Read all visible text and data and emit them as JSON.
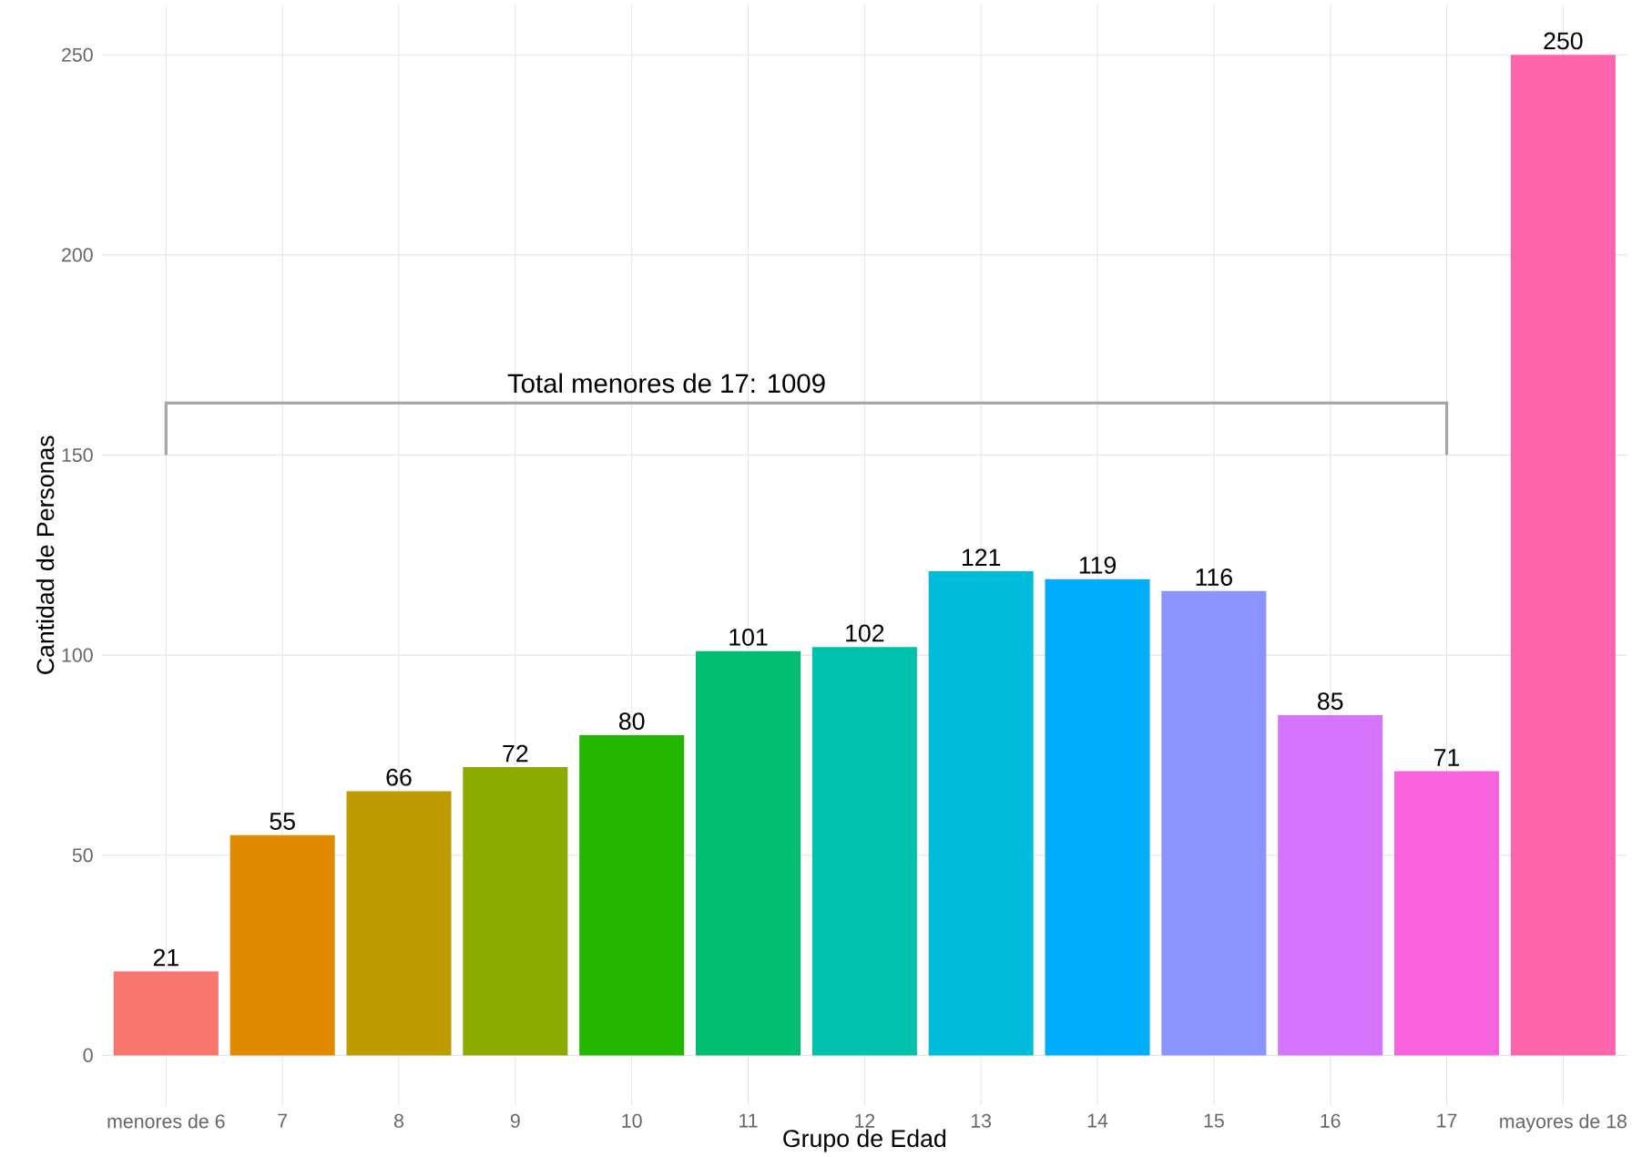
{
  "chart_data": {
    "type": "bar",
    "xlabel": "Grupo de Edad",
    "ylabel": "Cantidad de Personas",
    "categories": [
      "menores de 6",
      "7",
      "8",
      "9",
      "10",
      "11",
      "12",
      "13",
      "14",
      "15",
      "16",
      "17",
      "mayores de 18"
    ],
    "values": [
      21,
      55,
      66,
      72,
      80,
      101,
      102,
      121,
      119,
      116,
      85,
      71,
      250
    ],
    "colors": [
      "#F8766D",
      "#E18A00",
      "#BE9C00",
      "#8CAB00",
      "#24B700",
      "#00BE70",
      "#00C1AB",
      "#00BBDA",
      "#00ACFC",
      "#8B93FF",
      "#D575FE",
      "#F962DD",
      "#FF65AC"
    ],
    "ylim": [
      -12.5,
      262.5
    ],
    "yticks": [
      0,
      50,
      100,
      150,
      200,
      250
    ],
    "grid": true,
    "data_labels": true,
    "annotations": [
      "Total menores de 17: 1009"
    ]
  }
}
